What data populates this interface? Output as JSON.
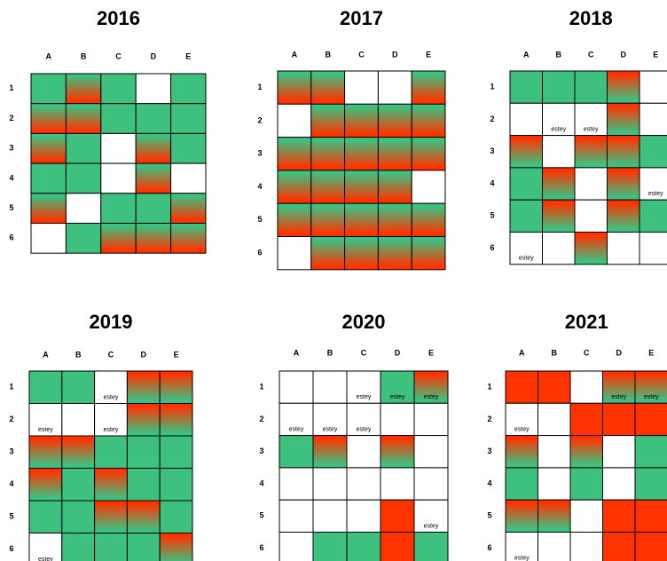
{
  "colors": {
    "green": "#3ec07f",
    "red": "#ff3300",
    "white": "#ffffff"
  },
  "panels": [
    {
      "title": "2016",
      "columns": [
        "A",
        "B",
        "C",
        "D",
        "E"
      ],
      "rows": [
        "1",
        "2",
        "3",
        "4",
        "5",
        "6"
      ],
      "cells": [
        [
          {
            "fill": "green"
          },
          {
            "fill": "green-red"
          },
          {
            "fill": "green"
          },
          {
            "fill": "white"
          },
          {
            "fill": "green"
          }
        ],
        [
          {
            "fill": "green-red"
          },
          {
            "fill": "green-red"
          },
          {
            "fill": "green"
          },
          {
            "fill": "green"
          },
          {
            "fill": "green"
          }
        ],
        [
          {
            "fill": "green-red"
          },
          {
            "fill": "green"
          },
          {
            "fill": "white"
          },
          {
            "fill": "green-red"
          },
          {
            "fill": "green"
          }
        ],
        [
          {
            "fill": "green"
          },
          {
            "fill": "green"
          },
          {
            "fill": "white"
          },
          {
            "fill": "green-red"
          },
          {
            "fill": "white"
          }
        ],
        [
          {
            "fill": "green-red"
          },
          {
            "fill": "white"
          },
          {
            "fill": "green"
          },
          {
            "fill": "green"
          },
          {
            "fill": "green-red"
          }
        ],
        [
          {
            "fill": "white"
          },
          {
            "fill": "green"
          },
          {
            "fill": "green-red"
          },
          {
            "fill": "green-red"
          },
          {
            "fill": "green-red"
          }
        ]
      ]
    },
    {
      "title": "2017",
      "columns": [
        "A",
        "B",
        "C",
        "D",
        "E"
      ],
      "rows": [
        "1",
        "2",
        "3",
        "4",
        "5",
        "6"
      ],
      "cells": [
        [
          {
            "fill": "green-red"
          },
          {
            "fill": "green-red"
          },
          {
            "fill": "white"
          },
          {
            "fill": "white"
          },
          {
            "fill": "green-red"
          }
        ],
        [
          {
            "fill": "white"
          },
          {
            "fill": "green-red"
          },
          {
            "fill": "green-red"
          },
          {
            "fill": "green-red"
          },
          {
            "fill": "green-red"
          }
        ],
        [
          {
            "fill": "green-red"
          },
          {
            "fill": "green-red"
          },
          {
            "fill": "green-red"
          },
          {
            "fill": "green-red"
          },
          {
            "fill": "green-red"
          }
        ],
        [
          {
            "fill": "green-red"
          },
          {
            "fill": "green-red"
          },
          {
            "fill": "green-red"
          },
          {
            "fill": "green-red"
          },
          {
            "fill": "white"
          }
        ],
        [
          {
            "fill": "green-red"
          },
          {
            "fill": "green-red"
          },
          {
            "fill": "green-red"
          },
          {
            "fill": "green-red"
          },
          {
            "fill": "green-red"
          }
        ],
        [
          {
            "fill": "white"
          },
          {
            "fill": "green-red"
          },
          {
            "fill": "green-red"
          },
          {
            "fill": "green-red"
          },
          {
            "fill": "green-red"
          }
        ]
      ]
    },
    {
      "title": "2018",
      "columns": [
        "A",
        "B",
        "C",
        "D",
        "E"
      ],
      "rows": [
        "1",
        "2",
        "3",
        "4",
        "5",
        "6"
      ],
      "cells": [
        [
          {
            "fill": "green"
          },
          {
            "fill": "green"
          },
          {
            "fill": "green"
          },
          {
            "fill": "red-green"
          },
          {
            "fill": "white"
          }
        ],
        [
          {
            "fill": "white"
          },
          {
            "fill": "white",
            "text": "estey"
          },
          {
            "fill": "white",
            "text": "estey"
          },
          {
            "fill": "red-green"
          },
          {
            "fill": "white"
          }
        ],
        [
          {
            "fill": "red-green"
          },
          {
            "fill": "white"
          },
          {
            "fill": "red-green"
          },
          {
            "fill": "red-green"
          },
          {
            "fill": "green"
          }
        ],
        [
          {
            "fill": "green"
          },
          {
            "fill": "red-green"
          },
          {
            "fill": "white"
          },
          {
            "fill": "red-green"
          },
          {
            "fill": "white",
            "text": "estey"
          }
        ],
        [
          {
            "fill": "green"
          },
          {
            "fill": "red-green"
          },
          {
            "fill": "white"
          },
          {
            "fill": "red-green"
          },
          {
            "fill": "green"
          }
        ],
        [
          {
            "fill": "white",
            "text": "estey"
          },
          {
            "fill": "white"
          },
          {
            "fill": "red-green"
          },
          {
            "fill": "white"
          },
          {
            "fill": "white"
          }
        ]
      ]
    },
    {
      "title": "2019",
      "columns": [
        "A",
        "B",
        "C",
        "D",
        "E"
      ],
      "rows": [
        "1",
        "2",
        "3",
        "4",
        "5",
        "6"
      ],
      "cells": [
        [
          {
            "fill": "green"
          },
          {
            "fill": "green"
          },
          {
            "fill": "white",
            "text": "estey"
          },
          {
            "fill": "red-green"
          },
          {
            "fill": "red-green"
          }
        ],
        [
          {
            "fill": "white",
            "text": "estey"
          },
          {
            "fill": "white"
          },
          {
            "fill": "white",
            "text": "estey"
          },
          {
            "fill": "red-green"
          },
          {
            "fill": "red-green"
          }
        ],
        [
          {
            "fill": "red-green"
          },
          {
            "fill": "red-green"
          },
          {
            "fill": "green"
          },
          {
            "fill": "green"
          },
          {
            "fill": "green"
          }
        ],
        [
          {
            "fill": "red-green"
          },
          {
            "fill": "green"
          },
          {
            "fill": "red-green"
          },
          {
            "fill": "green"
          },
          {
            "fill": "green"
          }
        ],
        [
          {
            "fill": "green"
          },
          {
            "fill": "green"
          },
          {
            "fill": "red-green"
          },
          {
            "fill": "red-green"
          },
          {
            "fill": "green"
          }
        ],
        [
          {
            "fill": "white",
            "text": "estey"
          },
          {
            "fill": "green"
          },
          {
            "fill": "green"
          },
          {
            "fill": "green"
          },
          {
            "fill": "red-green"
          }
        ]
      ]
    },
    {
      "title": "2020",
      "columns": [
        "A",
        "B",
        "C",
        "D",
        "E"
      ],
      "rows": [
        "1",
        "2",
        "3",
        "4",
        "5",
        "6"
      ],
      "cells": [
        [
          {
            "fill": "white"
          },
          {
            "fill": "white"
          },
          {
            "fill": "white",
            "text": "estey"
          },
          {
            "fill": "green",
            "text": "estey"
          },
          {
            "fill": "red-green",
            "text": "estey"
          }
        ],
        [
          {
            "fill": "white",
            "text": "estey"
          },
          {
            "fill": "white",
            "text": "estey"
          },
          {
            "fill": "white",
            "text": "estey"
          },
          {
            "fill": "white"
          },
          {
            "fill": "white"
          }
        ],
        [
          {
            "fill": "green"
          },
          {
            "fill": "red-green"
          },
          {
            "fill": "white"
          },
          {
            "fill": "red-green"
          },
          {
            "fill": "white"
          }
        ],
        [
          {
            "fill": "white"
          },
          {
            "fill": "white"
          },
          {
            "fill": "white"
          },
          {
            "fill": "white"
          },
          {
            "fill": "white"
          }
        ],
        [
          {
            "fill": "white"
          },
          {
            "fill": "white"
          },
          {
            "fill": "white"
          },
          {
            "fill": "red"
          },
          {
            "fill": "white",
            "text": "estey"
          }
        ],
        [
          {
            "fill": "white"
          },
          {
            "fill": "green"
          },
          {
            "fill": "green"
          },
          {
            "fill": "red"
          },
          {
            "fill": "green"
          }
        ]
      ]
    },
    {
      "title": "2021",
      "columns": [
        "A",
        "B",
        "C",
        "D",
        "E"
      ],
      "rows": [
        "1",
        "2",
        "3",
        "4",
        "5",
        "6"
      ],
      "cells": [
        [
          {
            "fill": "red"
          },
          {
            "fill": "red"
          },
          {
            "fill": "white"
          },
          {
            "fill": "red-green",
            "text": "estey"
          },
          {
            "fill": "red-green",
            "text": "estey"
          }
        ],
        [
          {
            "fill": "white",
            "text": "estey"
          },
          {
            "fill": "white"
          },
          {
            "fill": "red"
          },
          {
            "fill": "red"
          },
          {
            "fill": "red"
          }
        ],
        [
          {
            "fill": "red-green"
          },
          {
            "fill": "white"
          },
          {
            "fill": "red-green"
          },
          {
            "fill": "white"
          },
          {
            "fill": "green"
          }
        ],
        [
          {
            "fill": "green"
          },
          {
            "fill": "white"
          },
          {
            "fill": "green"
          },
          {
            "fill": "white"
          },
          {
            "fill": "green"
          }
        ],
        [
          {
            "fill": "red-green"
          },
          {
            "fill": "red-green"
          },
          {
            "fill": "white"
          },
          {
            "fill": "red"
          },
          {
            "fill": "red"
          }
        ],
        [
          {
            "fill": "white",
            "text": "estey"
          },
          {
            "fill": "white"
          },
          {
            "fill": "white"
          },
          {
            "fill": "red"
          },
          {
            "fill": "red"
          }
        ]
      ]
    }
  ]
}
